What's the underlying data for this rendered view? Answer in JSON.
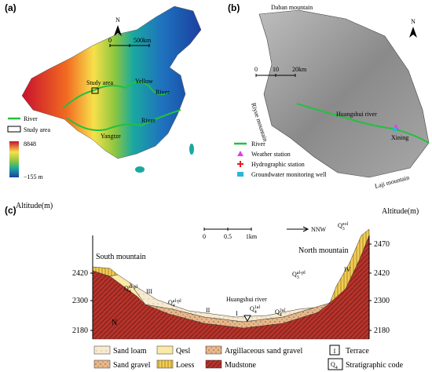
{
  "panel_a": {
    "label": "(a)",
    "north": "N",
    "scale": [
      "0",
      "500km"
    ],
    "study_area": "Study area",
    "yellow": "Yellow",
    "river_1": "River",
    "river_2": "River",
    "yangtze": "Yangtze",
    "legend": {
      "river": "River",
      "study_area": "Study area",
      "max": "8848",
      "min": "−155 m"
    }
  },
  "panel_b": {
    "label": "(b)",
    "daban": "Daban mountain",
    "north": "N",
    "scale": [
      "0",
      "10",
      "20km"
    ],
    "riyue": "Riyue mountain",
    "river": "Huangshui river",
    "xining": "Xining",
    "laji": "Laji mountain",
    "legend": [
      "River",
      "Weather station",
      "Hydrographic station",
      "Groundwater monitoring well"
    ]
  },
  "panel_c": {
    "label": "(c)",
    "axis_left": "Altitude(m)",
    "axis_right": "Altitude(m)",
    "direction": "NNW",
    "scale": [
      "0",
      "0.5",
      "1km"
    ],
    "south": "South mountain",
    "north": "North mountain",
    "river": "Huangshui river",
    "section_n": "N",
    "left_ticks": [
      "2420",
      "2300",
      "2180"
    ],
    "right_ticks": [
      "2470",
      "2420",
      "2300",
      "2180"
    ],
    "terraces": [
      "III",
      "II",
      "I",
      "IV"
    ],
    "codes": [
      {
        "main": "Q",
        "sub": "4",
        "sup": "dl-pl"
      },
      {
        "main": "Q",
        "sub": "4",
        "sup": "al-pl"
      },
      {
        "main": "Q",
        "sub": "4",
        "sup": "2al"
      },
      {
        "main": "Q",
        "sub": "4",
        "sup": "1al"
      },
      {
        "main": "Q",
        "sub": "3",
        "sup": "al-pl"
      },
      {
        "main": "Q",
        "sub": "3",
        "sup": "eol"
      }
    ],
    "legend": [
      "Sand loam",
      "Qesl",
      "Argillaceous sand gravel",
      "Terrace",
      "Sand gravel",
      "Loess",
      "Mudstone",
      "Stratigraphic code"
    ],
    "legend_terrace": "I",
    "legend_code": {
      "main": "Q",
      "sub": "4"
    }
  }
}
